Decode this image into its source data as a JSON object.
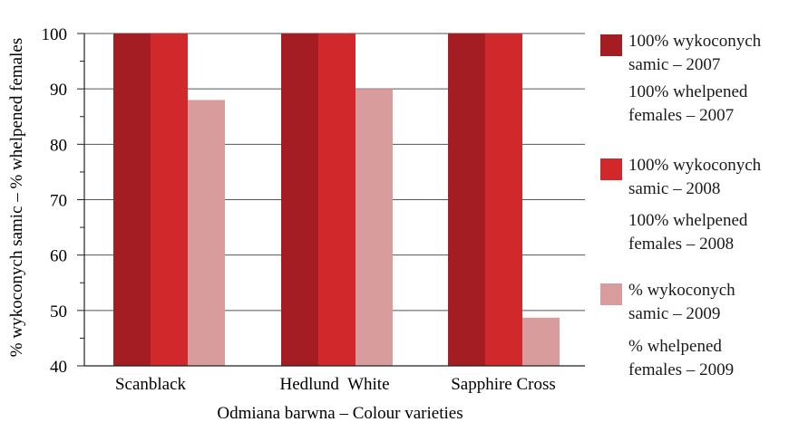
{
  "chart_data": {
    "type": "bar",
    "categories": [
      "Scanblack",
      "Hedlund  White",
      "Sapphire Cross"
    ],
    "series": [
      {
        "name": "100% wykoconych samic – 2007 / 100% whelpened females – 2007",
        "color": "#a31d22",
        "values": [
          100,
          100,
          100
        ]
      },
      {
        "name": "100% wykoconych samic – 2008 / 100% whelpened females – 2008",
        "color": "#d0282b",
        "values": [
          100,
          100,
          100
        ]
      },
      {
        "name": "% wykoconych samic – 2009 / % whelpened females – 2009",
        "color": "#d89c9c",
        "values": [
          88,
          90,
          48.7
        ]
      }
    ],
    "xlabel": "Odmiana barwna – Colour varieties",
    "ylabel": "% wykoconych samic –  % whelpened females",
    "ylim": [
      40,
      100
    ],
    "yticks": [
      40,
      50,
      60,
      70,
      80,
      90,
      100
    ],
    "grid": "horizontal",
    "legend_placement": "right"
  },
  "legend": [
    {
      "line1": "100% wykoconych",
      "line2": "samic – 2007",
      "line3": "100% whelpened",
      "line4": "females – 2007"
    },
    {
      "line1": "100% wykoconych",
      "line2": "samic – 2008",
      "line3": "100% whelpened",
      "line4": "females – 2008"
    },
    {
      "line1": "% wykoconych",
      "line2": "samic – 2009",
      "line3": "% whelpened",
      "line4": "females – 2009"
    }
  ]
}
